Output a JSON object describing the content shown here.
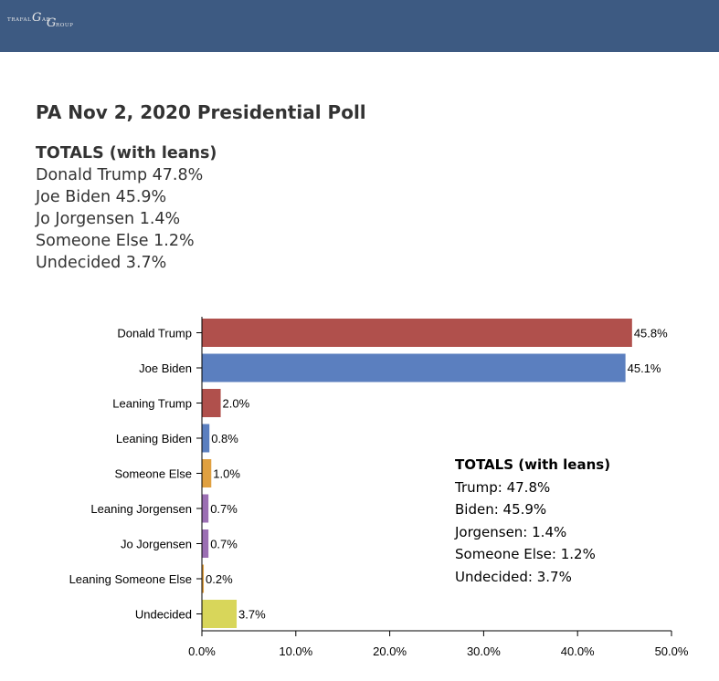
{
  "header": {
    "logo_text_big": "G",
    "logo_text_left": "TRAFAL",
    "logo_text_right": "AR",
    "logo_text_bottom": "ROUP",
    "logo_text_tail": "G"
  },
  "title": "PA Nov 2, 2020 Presidential Poll",
  "totals": {
    "heading": "TOTALS (with leans)",
    "lines": [
      "Donald Trump 47.8%",
      "Joe Biden 45.9%",
      "Jo Jorgensen 1.4%",
      "Someone Else 1.2%",
      "Undecided 3.7%"
    ]
  },
  "chart_data": {
    "type": "bar",
    "orientation": "horizontal",
    "categories": [
      "Donald Trump",
      "Joe Biden",
      "Leaning Trump",
      "Leaning Biden",
      "Someone Else",
      "Leaning Jorgensen",
      "Jo Jorgensen",
      "Leaning Someone Else",
      "Undecided"
    ],
    "values": [
      45.8,
      45.1,
      2.0,
      0.8,
      1.0,
      0.7,
      0.7,
      0.2,
      3.7
    ],
    "value_labels": [
      "45.8%",
      "45.1%",
      "2.0%",
      "0.8%",
      "1.0%",
      "0.7%",
      "0.7%",
      "0.2%",
      "3.7%"
    ],
    "colors": [
      "#b0504c",
      "#5b7fbf",
      "#b0504c",
      "#5b7fbf",
      "#e0a040",
      "#9b6fb3",
      "#9b6fb3",
      "#e0a040",
      "#d8d65a"
    ],
    "xlim": [
      0,
      50
    ],
    "xticks": [
      0,
      10,
      20,
      30,
      40,
      50
    ],
    "xtick_labels": [
      "0.0%",
      "10.0%",
      "20.0%",
      "30.0%",
      "40.0%",
      "50.0%"
    ],
    "grid": false,
    "annotation": {
      "heading": "TOTALS (with leans)",
      "lines": [
        "Trump: 47.8%",
        "Biden: 45.9%",
        "Jorgensen: 1.4%",
        "Someone Else: 1.2%",
        "Undecided: 3.7%"
      ]
    }
  }
}
